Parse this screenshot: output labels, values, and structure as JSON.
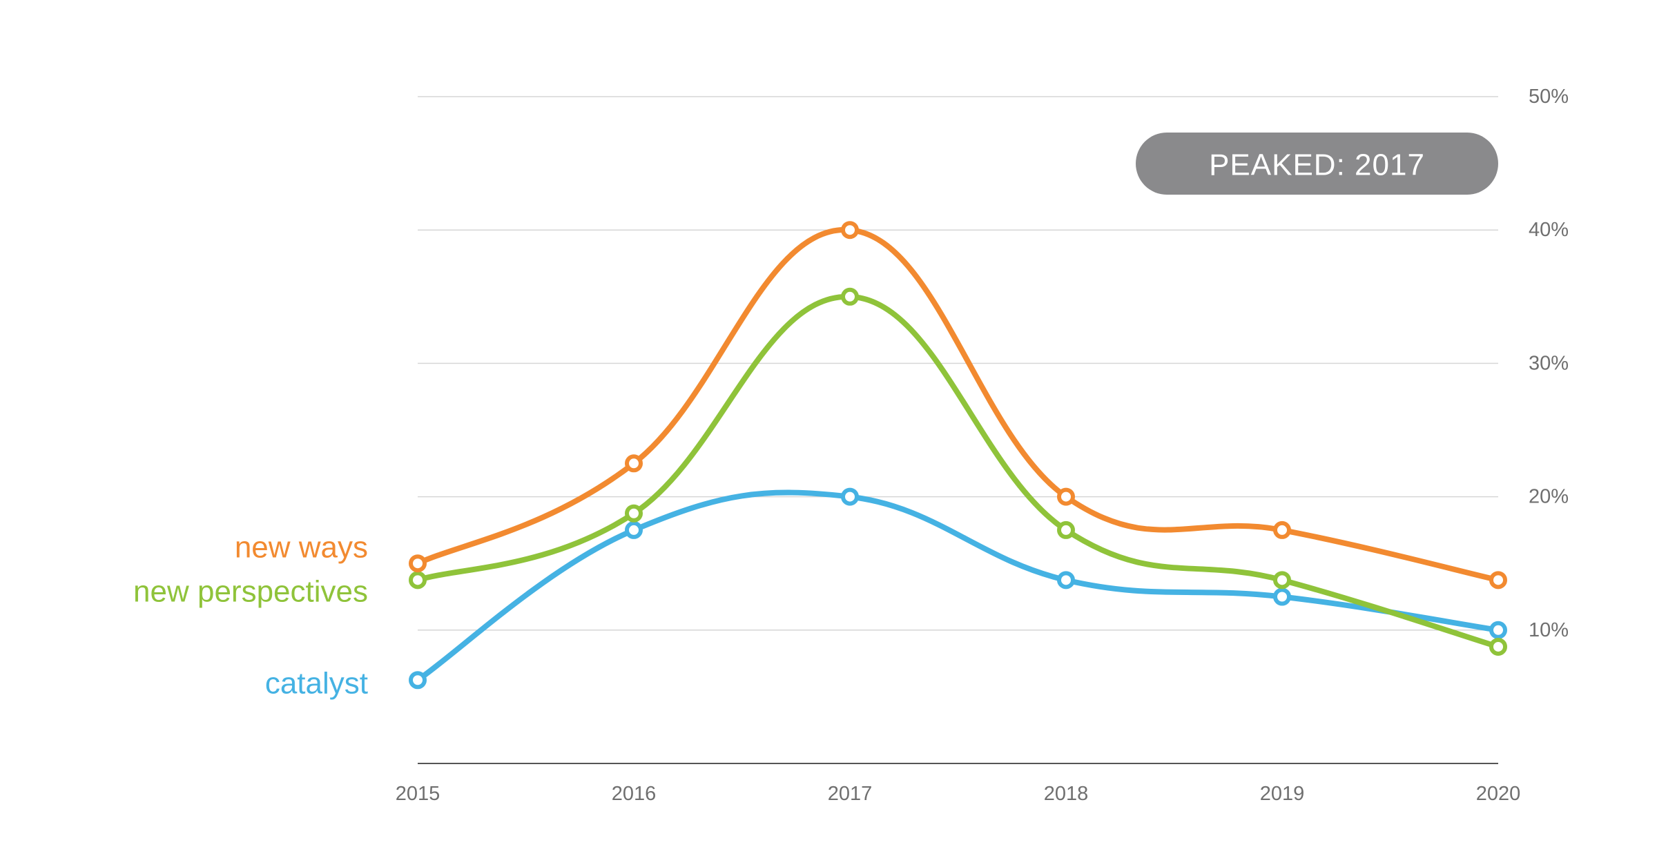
{
  "chart_data": {
    "type": "line",
    "x": [
      "2015",
      "2016",
      "2017",
      "2018",
      "2019",
      "2020"
    ],
    "series": [
      {
        "name": "new ways",
        "color": "#f28a30",
        "values": [
          15,
          22.5,
          40,
          20,
          17.5,
          13.75
        ]
      },
      {
        "name": "new perspectives",
        "color": "#8fc33a",
        "values": [
          13.75,
          18.75,
          35,
          17.5,
          13.75,
          8.75
        ]
      },
      {
        "name": "catalyst",
        "color": "#45b2e3",
        "values": [
          6.25,
          17.5,
          20,
          13.75,
          12.5,
          10
        ]
      }
    ],
    "ylim": [
      0,
      50
    ],
    "y_ticks": [
      "10%",
      "20%",
      "30%",
      "40%",
      "50%"
    ],
    "y_tick_values": [
      10,
      20,
      30,
      40,
      50
    ],
    "grid": true,
    "legend_placement": "left",
    "annotation": {
      "text": "PEAKED: 2017",
      "color": "#8a8a8c"
    },
    "grid_color": "#d6d6d6",
    "axis_color": "#555555"
  }
}
